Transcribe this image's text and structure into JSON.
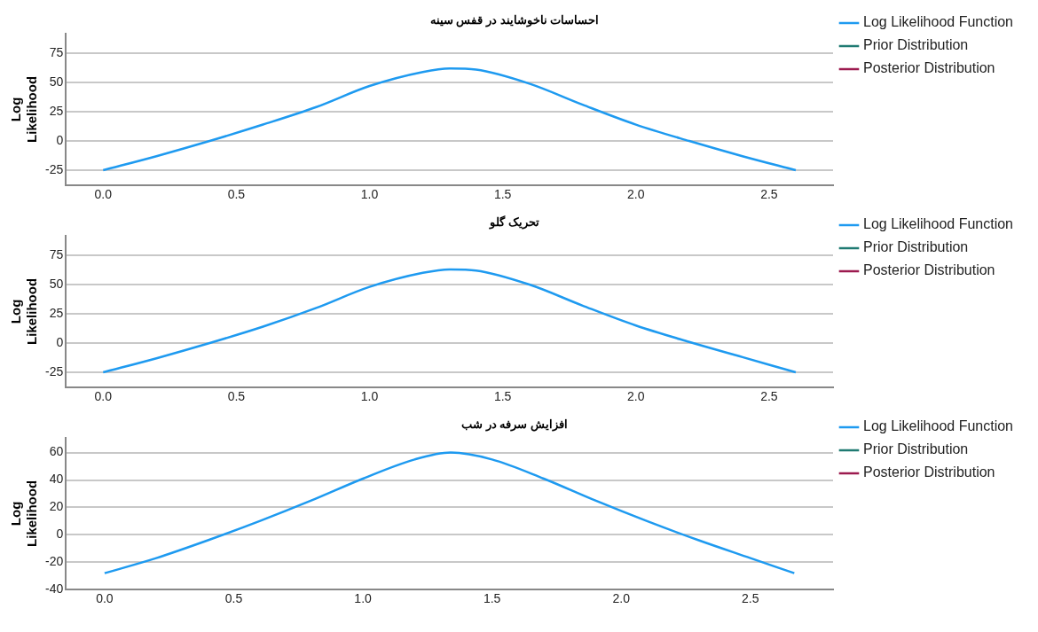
{
  "chart_data": [
    {
      "type": "line",
      "title": "احساسات ناخوشایند در قفس سینه",
      "ylabel": "Log Likelihood",
      "xlim": [
        -0.14,
        2.74
      ],
      "ylim": [
        -38,
        92
      ],
      "xticks": [
        {
          "value": 0,
          "label": "0.0"
        },
        {
          "value": 0.5,
          "label": "0.5"
        },
        {
          "value": 1,
          "label": "1.0"
        },
        {
          "value": 1.5,
          "label": "1.5"
        },
        {
          "value": 2,
          "label": "2.0"
        },
        {
          "value": 2.5,
          "label": "2.5"
        }
      ],
      "yticks": [
        -25,
        0,
        25,
        50,
        75
      ],
      "grid": "y",
      "legend": "right",
      "marker": "none",
      "series": [
        {
          "name": "Log Likelihood Function",
          "color": "#1e9af0",
          "x": [
            0,
            0.2,
            0.4,
            0.6,
            0.8,
            1.0,
            1.2,
            1.3,
            1.4,
            1.6,
            1.8,
            2.0,
            2.2,
            2.4,
            2.6
          ],
          "values": [
            -25,
            -13,
            0,
            14,
            29,
            47,
            59,
            62,
            61,
            49,
            31,
            14,
            0,
            -13,
            -25
          ]
        },
        {
          "name": "Prior Distribution",
          "color": "#1f7a72"
        },
        {
          "name": "Posterior Distribution",
          "color": "#9c1a4f"
        }
      ]
    },
    {
      "type": "line",
      "title": "تحریک گلو",
      "ylabel": "Log Likelihood",
      "xlim": [
        -0.14,
        2.74
      ],
      "ylim": [
        -38,
        92
      ],
      "xticks": [
        {
          "value": 0,
          "label": "0.0"
        },
        {
          "value": 0.5,
          "label": "0.5"
        },
        {
          "value": 1,
          "label": "1.0"
        },
        {
          "value": 1.5,
          "label": "1.5"
        },
        {
          "value": 2,
          "label": "2.0"
        },
        {
          "value": 2.5,
          "label": "2.5"
        }
      ],
      "yticks": [
        -25,
        0,
        25,
        50,
        75
      ],
      "grid": "y",
      "legend": "right",
      "marker": "none",
      "series": [
        {
          "name": "Log Likelihood Function",
          "color": "#1e9af0",
          "x": [
            0,
            0.2,
            0.4,
            0.6,
            0.8,
            1.0,
            1.2,
            1.3,
            1.4,
            1.6,
            1.8,
            2.0,
            2.2,
            2.4,
            2.6
          ],
          "values": [
            -25,
            -13,
            0,
            14,
            30,
            48,
            60,
            63,
            62,
            50,
            32,
            15,
            1,
            -12,
            -25
          ]
        },
        {
          "name": "Prior Distribution",
          "color": "#1f7a72"
        },
        {
          "name": "Posterior Distribution",
          "color": "#9c1a4f"
        }
      ]
    },
    {
      "type": "line",
      "title": "افزایش سرفه در شب",
      "ylabel": "Log Likelihood",
      "xlim": [
        -0.15,
        2.82
      ],
      "ylim": [
        -40,
        71
      ],
      "xticks": [
        {
          "value": 0,
          "label": "0.0"
        },
        {
          "value": 0.5,
          "label": "0.5"
        },
        {
          "value": 1,
          "label": "1.0"
        },
        {
          "value": 1.5,
          "label": "1.5"
        },
        {
          "value": 2,
          "label": "2.0"
        },
        {
          "value": 2.5,
          "label": "2.5"
        }
      ],
      "yticks": [
        -40,
        -20,
        0,
        20,
        40,
        60
      ],
      "grid": "y",
      "legend": "right",
      "marker": "none",
      "series": [
        {
          "name": "Log Likelihood Function",
          "color": "#1e9af0",
          "x": [
            0,
            0.2,
            0.4,
            0.6,
            0.8,
            1.0,
            1.2,
            1.34,
            1.5,
            1.7,
            1.9,
            2.1,
            2.3,
            2.5,
            2.67
          ],
          "values": [
            -28,
            -17,
            -4,
            10,
            25,
            41,
            55,
            60,
            55,
            41,
            25,
            10,
            -4,
            -17,
            -28
          ]
        },
        {
          "name": "Prior Distribution",
          "color": "#1f7a72"
        },
        {
          "name": "Posterior Distribution",
          "color": "#9c1a4f"
        }
      ]
    }
  ]
}
